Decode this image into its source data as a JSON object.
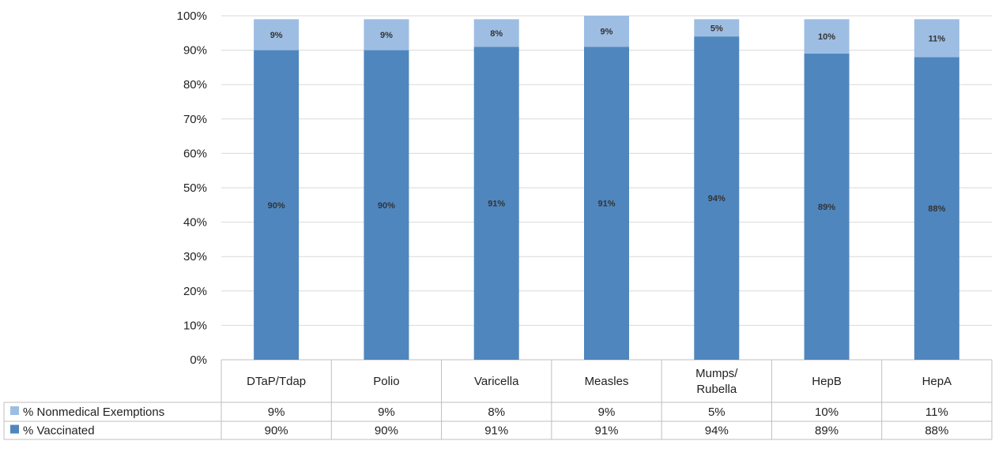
{
  "chart_data": {
    "type": "bar",
    "stacked": true,
    "categories": [
      "DTaP/Tdap",
      "Polio",
      "Varicella",
      "Measles",
      "Mumps/\nRubella",
      "HepB",
      "HepA"
    ],
    "series": [
      {
        "name": "% Vaccinated",
        "color": "#4f86be",
        "values": [
          90,
          90,
          91,
          91,
          94,
          89,
          88
        ],
        "labels": [
          "90%",
          "90%",
          "91%",
          "91%",
          "94%",
          "89%",
          "88%"
        ]
      },
      {
        "name": "% Nonmedical Exemptions",
        "color": "#9dbde3",
        "values": [
          9,
          9,
          8,
          9,
          5,
          10,
          11
        ],
        "labels": [
          "9%",
          "9%",
          "8%",
          "9%",
          "5%",
          "10%",
          "11%"
        ]
      }
    ],
    "y_ticks": [
      "0%",
      "10%",
      "20%",
      "30%",
      "40%",
      "50%",
      "60%",
      "70%",
      "80%",
      "90%",
      "100%"
    ],
    "ylim": [
      0,
      100
    ],
    "grid": true,
    "legend": "data-table-left",
    "data_table": true
  }
}
